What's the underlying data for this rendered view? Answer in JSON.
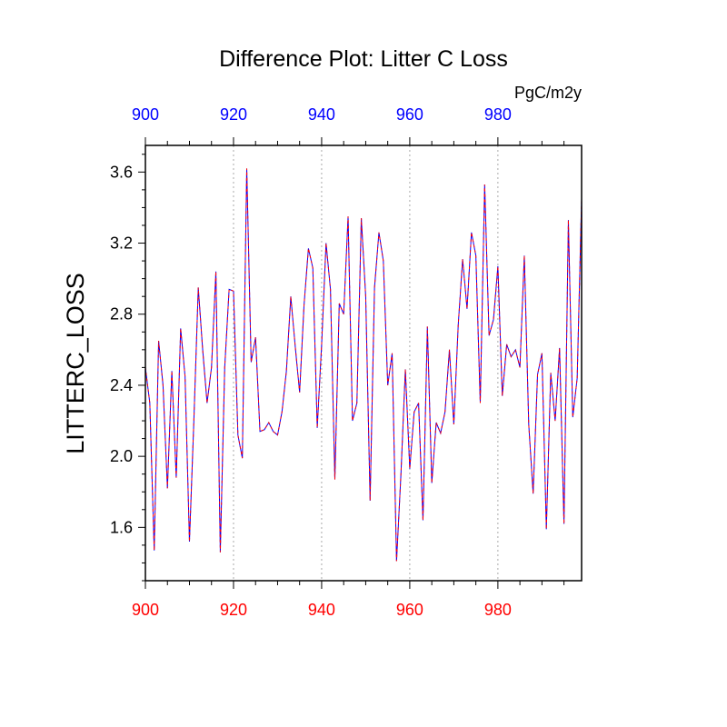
{
  "chart_data": {
    "type": "line",
    "title": "Difference Plot: Litter C Loss",
    "units": "PgC/m2y",
    "ylabel": "LITTERC_LOSS",
    "xlim": [
      900,
      999
    ],
    "ylim": [
      1.3,
      3.75
    ],
    "grid": "vertical-dotted-at-major-x-ticks",
    "x_ticks": [
      900,
      920,
      940,
      960,
      980
    ],
    "y_ticks": [
      1.6,
      2.0,
      2.4,
      2.8,
      3.2,
      3.6
    ],
    "y_tick_labels": [
      "1.6",
      "2.0",
      "2.4",
      "2.8",
      "3.2",
      "3.6"
    ],
    "top_axis_labels": [
      "900",
      "920",
      "940",
      "960",
      "980"
    ],
    "bottom_axis_labels": [
      "900",
      "920",
      "940",
      "960",
      "980"
    ],
    "x": [
      900,
      901,
      902,
      903,
      904,
      905,
      906,
      907,
      908,
      909,
      910,
      911,
      912,
      913,
      914,
      915,
      916,
      917,
      918,
      919,
      920,
      921,
      922,
      923,
      924,
      925,
      926,
      927,
      928,
      929,
      930,
      931,
      932,
      933,
      934,
      935,
      936,
      937,
      938,
      939,
      940,
      941,
      942,
      943,
      944,
      945,
      946,
      947,
      948,
      949,
      950,
      951,
      952,
      953,
      954,
      955,
      956,
      957,
      958,
      959,
      960,
      961,
      962,
      963,
      964,
      965,
      966,
      967,
      968,
      969,
      970,
      971,
      972,
      973,
      974,
      975,
      976,
      977,
      978,
      979,
      980,
      981,
      982,
      983,
      984,
      985,
      986,
      987,
      988,
      989,
      990,
      991,
      992,
      993,
      994,
      995,
      996,
      997,
      998,
      999
    ],
    "series": [
      {
        "color": "#0000ff",
        "dash": "solid",
        "values": [
          2.5,
          2.3,
          1.47,
          2.65,
          2.4,
          1.82,
          2.48,
          1.88,
          2.72,
          2.45,
          1.52,
          2.2,
          2.95,
          2.6,
          2.3,
          2.5,
          3.04,
          1.46,
          2.5,
          2.94,
          2.93,
          2.12,
          1.99,
          3.62,
          2.53,
          2.67,
          2.14,
          2.15,
          2.19,
          2.14,
          2.12,
          2.25,
          2.48,
          2.9,
          2.62,
          2.36,
          2.85,
          3.17,
          3.06,
          2.16,
          2.63,
          3.2,
          2.94,
          1.87,
          2.86,
          2.8,
          3.35,
          2.2,
          2.3,
          3.34,
          2.9,
          1.75,
          2.95,
          3.26,
          3.1,
          2.4,
          2.58,
          1.41,
          1.9,
          2.49,
          1.93,
          2.25,
          2.3,
          1.64,
          2.73,
          1.85,
          2.19,
          2.13,
          2.25,
          2.6,
          2.18,
          2.74,
          3.11,
          2.83,
          3.26,
          3.13,
          2.3,
          3.53,
          2.68,
          2.77,
          3.07,
          2.34,
          2.63,
          2.56,
          2.6,
          2.5,
          3.13,
          2.18,
          1.79,
          2.46,
          2.58,
          1.59,
          2.47,
          2.2,
          2.61,
          1.62,
          3.33,
          2.22,
          2.44,
          3.45
        ]
      },
      {
        "color": "#ff0000",
        "dash": "dashed",
        "values": [
          2.5,
          2.3,
          1.47,
          2.65,
          2.4,
          1.82,
          2.48,
          1.88,
          2.72,
          2.45,
          1.52,
          2.2,
          2.95,
          2.6,
          2.3,
          2.5,
          3.04,
          1.46,
          2.5,
          2.94,
          2.93,
          2.12,
          1.99,
          3.62,
          2.53,
          2.67,
          2.14,
          2.15,
          2.19,
          2.14,
          2.12,
          2.25,
          2.48,
          2.9,
          2.62,
          2.36,
          2.85,
          3.17,
          3.06,
          2.16,
          2.63,
          3.2,
          2.94,
          1.87,
          2.86,
          2.8,
          3.35,
          2.2,
          2.3,
          3.34,
          2.9,
          1.75,
          2.95,
          3.26,
          3.1,
          2.4,
          2.58,
          1.41,
          1.9,
          2.49,
          1.93,
          2.25,
          2.3,
          1.64,
          2.73,
          1.85,
          2.19,
          2.13,
          2.25,
          2.6,
          2.18,
          2.74,
          3.11,
          2.83,
          3.26,
          3.13,
          2.3,
          3.53,
          2.68,
          2.77,
          3.07,
          2.34,
          2.63,
          2.56,
          2.6,
          2.5,
          3.13,
          2.18,
          1.79,
          2.46,
          2.58,
          1.59,
          2.47,
          2.2,
          2.61,
          1.62,
          3.33,
          2.22,
          2.44,
          3.45
        ]
      }
    ],
    "colors": {
      "top_axis_labels": "#0000ff",
      "bottom_axis_labels": "#ff0000",
      "frame": "#000000",
      "grid": "#aaaaaa"
    }
  }
}
